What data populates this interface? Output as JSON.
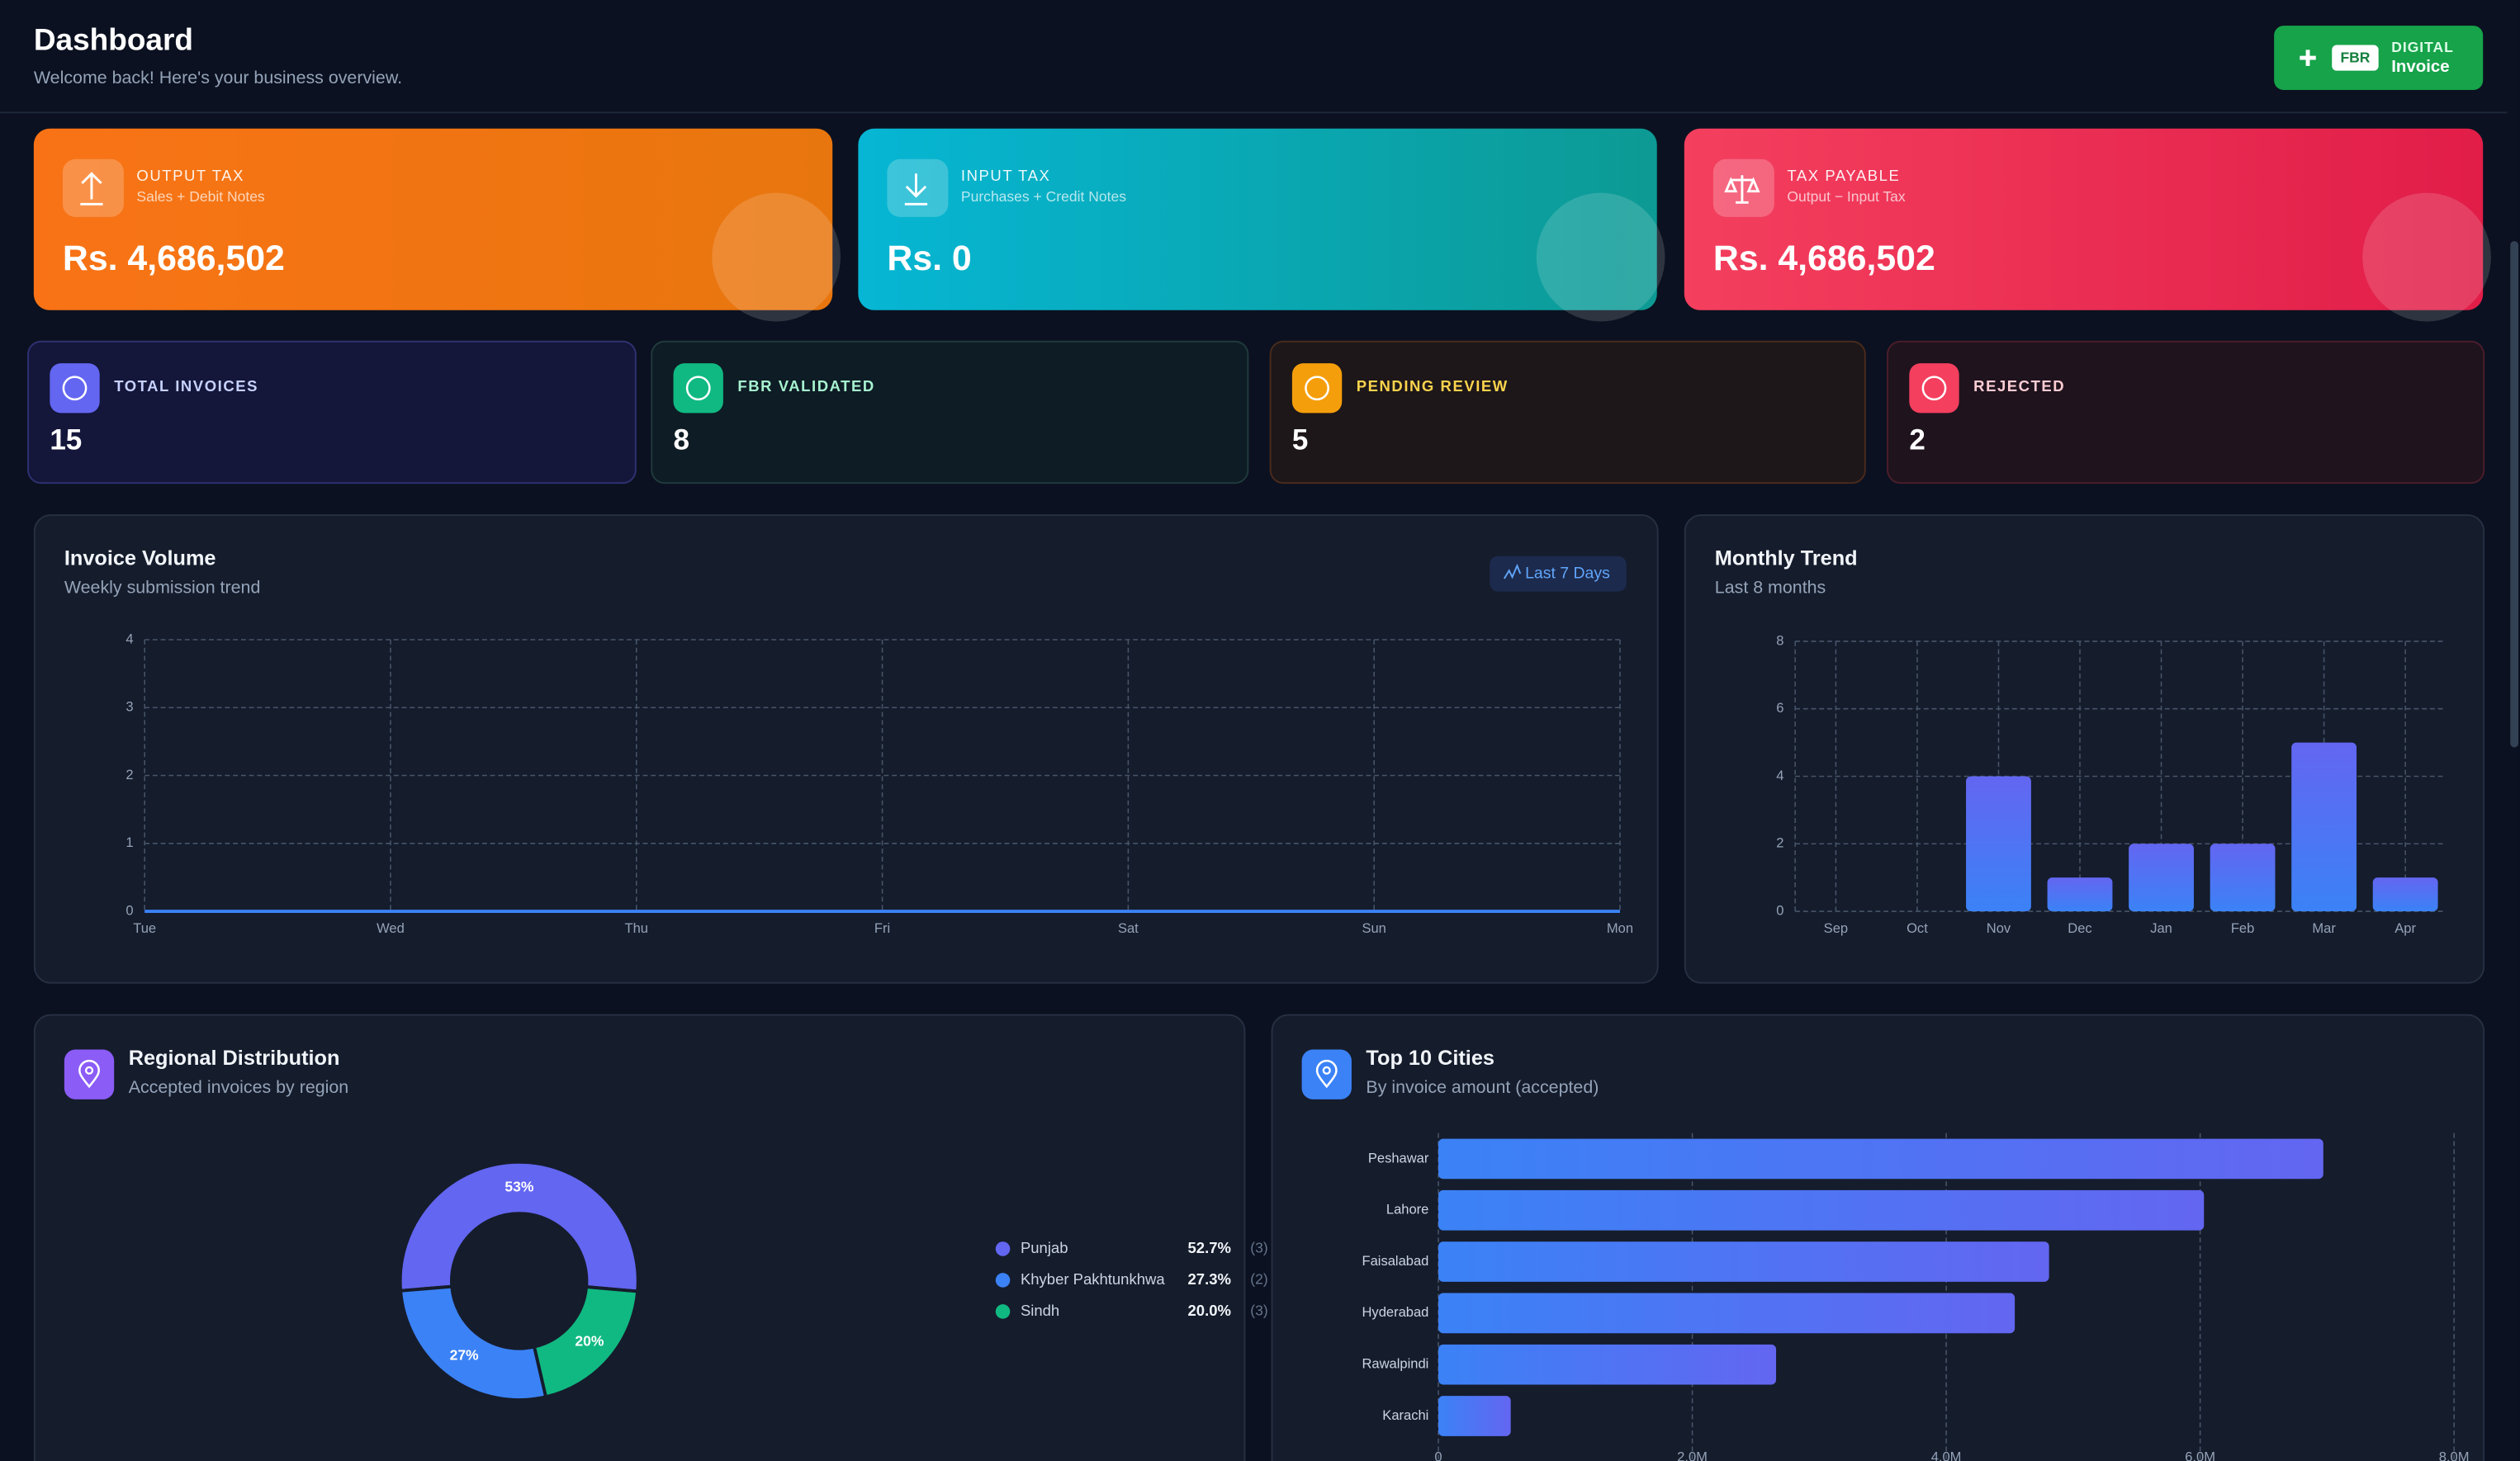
{
  "header": {
    "title": "Dashboard",
    "subtitle": "Welcome back! Here's your business overview.",
    "button_badge": "FBR",
    "button_line1": "DIGITAL",
    "button_line2": "Invoice"
  },
  "tax_cards": [
    {
      "label": "OUTPUT TAX",
      "sub": "Sales + Debit Notes",
      "value": "Rs. 4,686,502"
    },
    {
      "label": "INPUT TAX",
      "sub": "Purchases + Credit Notes",
      "value": "Rs. 0"
    },
    {
      "label": "TAX PAYABLE",
      "sub": "Output − Input Tax",
      "value": "Rs. 4,686,502"
    }
  ],
  "status_cards": [
    {
      "label": "TOTAL INVOICES",
      "value": 15
    },
    {
      "label": "FBR VALIDATED",
      "value": 8
    },
    {
      "label": "PENDING REVIEW",
      "value": 5
    },
    {
      "label": "REJECTED",
      "value": 2
    }
  ],
  "invoice_volume": {
    "type": "line",
    "title": "Invoice Volume",
    "subtitle": "Weekly submission trend",
    "badge": "Last 7 Days",
    "categories": [
      "Tue",
      "Wed",
      "Thu",
      "Fri",
      "Sat",
      "Sun",
      "Mon"
    ],
    "values": [
      0,
      0,
      0,
      0,
      0,
      0,
      0
    ],
    "color": "#3b82f6",
    "ylim": [
      0,
      4
    ],
    "yticks": [
      0,
      1,
      2,
      3,
      4
    ],
    "grid": true
  },
  "monthly_trend": {
    "type": "bar",
    "title": "Monthly Trend",
    "subtitle": "Last 8 months",
    "categories": [
      "Sep",
      "Oct",
      "Nov",
      "Dec",
      "Jan",
      "Feb",
      "Mar",
      "Apr"
    ],
    "values": [
      0,
      0,
      4,
      1,
      2,
      2,
      5,
      1
    ],
    "color": "#6366f1",
    "ylim": [
      0,
      8
    ],
    "yticks": [
      0,
      2,
      4,
      6,
      8
    ],
    "grid": true
  },
  "regional_distribution": {
    "type": "pie",
    "title": "Regional Distribution",
    "subtitle": "Accepted invoices by region",
    "categories": [
      "Punjab",
      "Khyber Pakhtunkhwa",
      "Sindh"
    ],
    "values": [
      52.7,
      27.3,
      20.0
    ],
    "value_labels": [
      "53%",
      "27%",
      "20%"
    ],
    "legend_values": [
      "52.7%",
      "27.3%",
      "20.0%"
    ],
    "counts": [
      "(3)",
      "(2)",
      "(3)"
    ],
    "colors": [
      "#6366f1",
      "#3b82f6",
      "#10b981"
    ]
  },
  "top_cities": {
    "type": "hbar",
    "title": "Top 10 Cities",
    "subtitle": "By invoice amount (accepted)",
    "categories": [
      "Peshawar",
      "Lahore",
      "Faisalabad",
      "Hyderabad",
      "Rawalpindi",
      "Karachi"
    ],
    "values": [
      6970000,
      6030000,
      4810000,
      4540000,
      2660000,
      570000
    ],
    "xlim": [
      0,
      8000000
    ],
    "xticks": [
      0,
      {
        "value": 2000000,
        "label": "2.0M"
      },
      {
        "value": 4000000,
        "label": "4.0M"
      },
      {
        "value": 6000000,
        "label": "6.0M"
      },
      {
        "value": 8000000,
        "label": "8.0M"
      }
    ],
    "grid": true
  }
}
